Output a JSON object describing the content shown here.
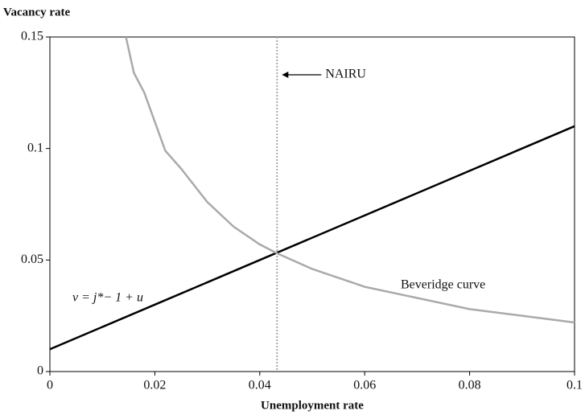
{
  "chart_data": {
    "type": "line",
    "x_label": "Unemployment rate",
    "y_label": "Vacancy rate",
    "xlim": [
      0,
      0.1
    ],
    "ylim": [
      0,
      0.15
    ],
    "xticks": [
      0,
      0.02,
      0.04,
      0.06,
      0.08,
      0.1
    ],
    "yticks": [
      0,
      0.05,
      0.1,
      0.15
    ],
    "series": [
      {
        "name": "v = j*− 1 + u",
        "color": "#000000",
        "x": [
          0,
          0.02,
          0.04,
          0.06,
          0.08,
          0.1
        ],
        "values": [
          0.01,
          0.03,
          0.05,
          0.07,
          0.09,
          0.11
        ]
      },
      {
        "name": "Beveridge curve",
        "color": "#aaaaaa",
        "x": [
          0.0145,
          0.016,
          0.018,
          0.02,
          0.022,
          0.025,
          0.03,
          0.035,
          0.04,
          0.0433,
          0.05,
          0.06,
          0.07,
          0.08,
          0.09,
          0.1
        ],
        "values": [
          0.15,
          0.134,
          0.125,
          0.112,
          0.099,
          0.091,
          0.076,
          0.065,
          0.057,
          0.053,
          0.046,
          0.038,
          0.033,
          0.028,
          0.025,
          0.022
        ]
      }
    ],
    "vline": {
      "x": 0.0433,
      "label": "NAIRU",
      "color": "#aaaaaa"
    }
  }
}
